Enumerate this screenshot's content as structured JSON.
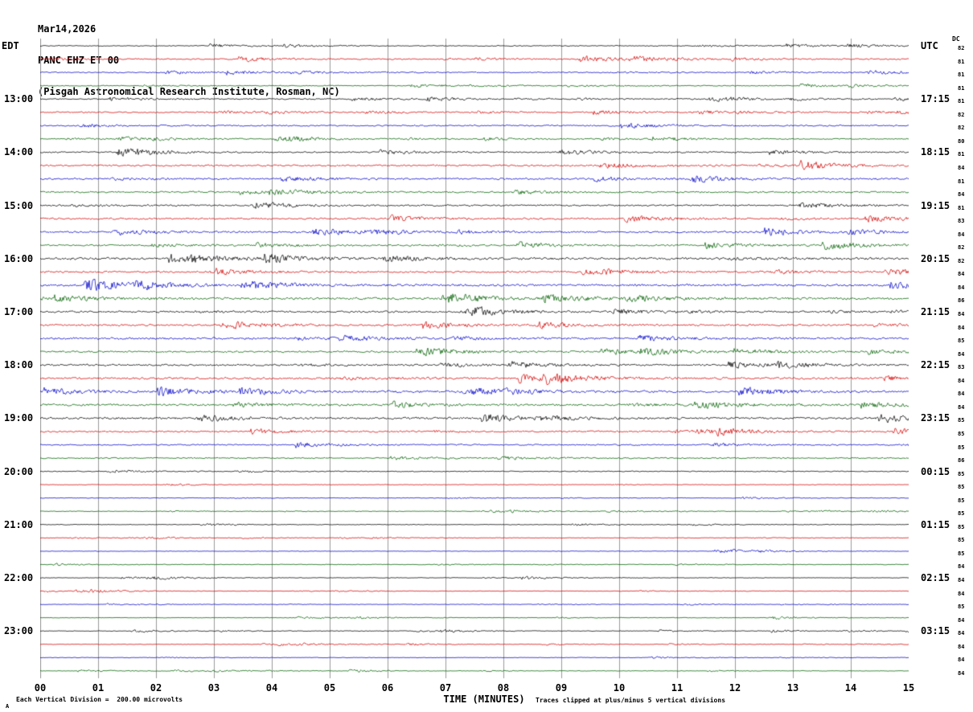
{
  "header": {
    "date": "Mar14,2026",
    "station": "PANC EHZ ET 00",
    "institute": "(Pisgah Astronomical Research Institute, Rosman, NC)"
  },
  "footer": {
    "scale_note": "Each Vertical Division =  200.00 microvolts",
    "clip_note": "Traces clipped at plus/minus 5 vertical divisions",
    "corner_mark": "A"
  },
  "chart_data": {
    "type": "seismogram",
    "title": "PANC EHZ ET 00 helicorder record",
    "xlabel": "TIME (MINUTES)",
    "dc_label": "DC",
    "minutes_per_line": 15,
    "x_ticks": [
      "00",
      "01",
      "02",
      "03",
      "04",
      "05",
      "06",
      "07",
      "08",
      "09",
      "10",
      "11",
      "12",
      "13",
      "14",
      "15"
    ],
    "left_axis_title": "EDT",
    "right_axis_title": "UTC",
    "hour_rows": [
      {
        "edt": "EDT",
        "utc": "UTC"
      },
      {
        "edt": "13:00",
        "utc": "17:15"
      },
      {
        "edt": "14:00",
        "utc": "18:15"
      },
      {
        "edt": "15:00",
        "utc": "19:15"
      },
      {
        "edt": "16:00",
        "utc": "20:15"
      },
      {
        "edt": "17:00",
        "utc": "21:15"
      },
      {
        "edt": "18:00",
        "utc": "22:15"
      },
      {
        "edt": "19:00",
        "utc": "23:15"
      },
      {
        "edt": "20:00",
        "utc": "00:15"
      },
      {
        "edt": "21:00",
        "utc": "01:15"
      },
      {
        "edt": "22:00",
        "utc": "02:15"
      },
      {
        "edt": "23:00",
        "utc": "03:15"
      }
    ],
    "trace_colors": {
      "black": "#000000",
      "red": "#d40000",
      "blue": "#0000c8",
      "green": "#006000"
    },
    "grid_color": "#9a9a9a",
    "traces": [
      {
        "color": "black",
        "amp": 1.2,
        "dc": 82
      },
      {
        "color": "red",
        "amp": 1.5,
        "dc": 81
      },
      {
        "color": "blue",
        "amp": 1.5,
        "dc": 81
      },
      {
        "color": "green",
        "amp": 1.3,
        "dc": 81
      },
      {
        "color": "black",
        "amp": 1.5,
        "dc": 81
      },
      {
        "color": "red",
        "amp": 1.8,
        "dc": 82
      },
      {
        "color": "blue",
        "amp": 1.8,
        "dc": 82
      },
      {
        "color": "green",
        "amp": 1.5,
        "dc": 80
      },
      {
        "color": "black",
        "amp": 1.8,
        "dc": 81
      },
      {
        "color": "red",
        "amp": 2.2,
        "dc": 84
      },
      {
        "color": "blue",
        "amp": 2.4,
        "dc": 81
      },
      {
        "color": "green",
        "amp": 2.2,
        "dc": 84
      },
      {
        "color": "black",
        "amp": 2.2,
        "dc": 81
      },
      {
        "color": "red",
        "amp": 2.2,
        "dc": 83
      },
      {
        "color": "blue",
        "amp": 2.4,
        "dc": 84
      },
      {
        "color": "green",
        "amp": 2.2,
        "dc": 82
      },
      {
        "color": "black",
        "amp": 3.0,
        "dc": 82
      },
      {
        "color": "red",
        "amp": 2.4,
        "dc": 84
      },
      {
        "color": "blue",
        "amp": 3.0,
        "dc": 84
      },
      {
        "color": "green",
        "amp": 3.0,
        "dc": 86
      },
      {
        "color": "black",
        "amp": 2.4,
        "dc": 84
      },
      {
        "color": "red",
        "amp": 2.4,
        "dc": 84
      },
      {
        "color": "blue",
        "amp": 2.8,
        "dc": 85
      },
      {
        "color": "green",
        "amp": 2.4,
        "dc": 84
      },
      {
        "color": "black",
        "amp": 2.4,
        "dc": 83
      },
      {
        "color": "red",
        "amp": 2.8,
        "dc": 84
      },
      {
        "color": "blue",
        "amp": 2.8,
        "dc": 84
      },
      {
        "color": "green",
        "amp": 2.8,
        "dc": 84
      },
      {
        "color": "black",
        "amp": 2.8,
        "dc": 85
      },
      {
        "color": "red",
        "amp": 2.0,
        "dc": 85
      },
      {
        "color": "blue",
        "amp": 1.8,
        "dc": 85
      },
      {
        "color": "green",
        "amp": 1.6,
        "dc": 86
      },
      {
        "color": "black",
        "amp": 1.2,
        "dc": 85
      },
      {
        "color": "red",
        "amp": 0.8,
        "dc": 85
      },
      {
        "color": "blue",
        "amp": 0.8,
        "dc": 85
      },
      {
        "color": "green",
        "amp": 0.8,
        "dc": 85
      },
      {
        "color": "black",
        "amp": 0.9,
        "dc": 85
      },
      {
        "color": "red",
        "amp": 0.7,
        "dc": 85
      },
      {
        "color": "blue",
        "amp": 0.7,
        "dc": 85
      },
      {
        "color": "green",
        "amp": 0.8,
        "dc": 84
      },
      {
        "color": "black",
        "amp": 0.8,
        "dc": 84
      },
      {
        "color": "red",
        "amp": 0.7,
        "dc": 84
      },
      {
        "color": "blue",
        "amp": 0.7,
        "dc": 85
      },
      {
        "color": "green",
        "amp": 0.7,
        "dc": 84
      },
      {
        "color": "black",
        "amp": 0.8,
        "dc": 84
      },
      {
        "color": "red",
        "amp": 0.7,
        "dc": 84
      },
      {
        "color": "blue",
        "amp": 0.7,
        "dc": 84
      },
      {
        "color": "green",
        "amp": 0.7,
        "dc": 84
      }
    ]
  }
}
